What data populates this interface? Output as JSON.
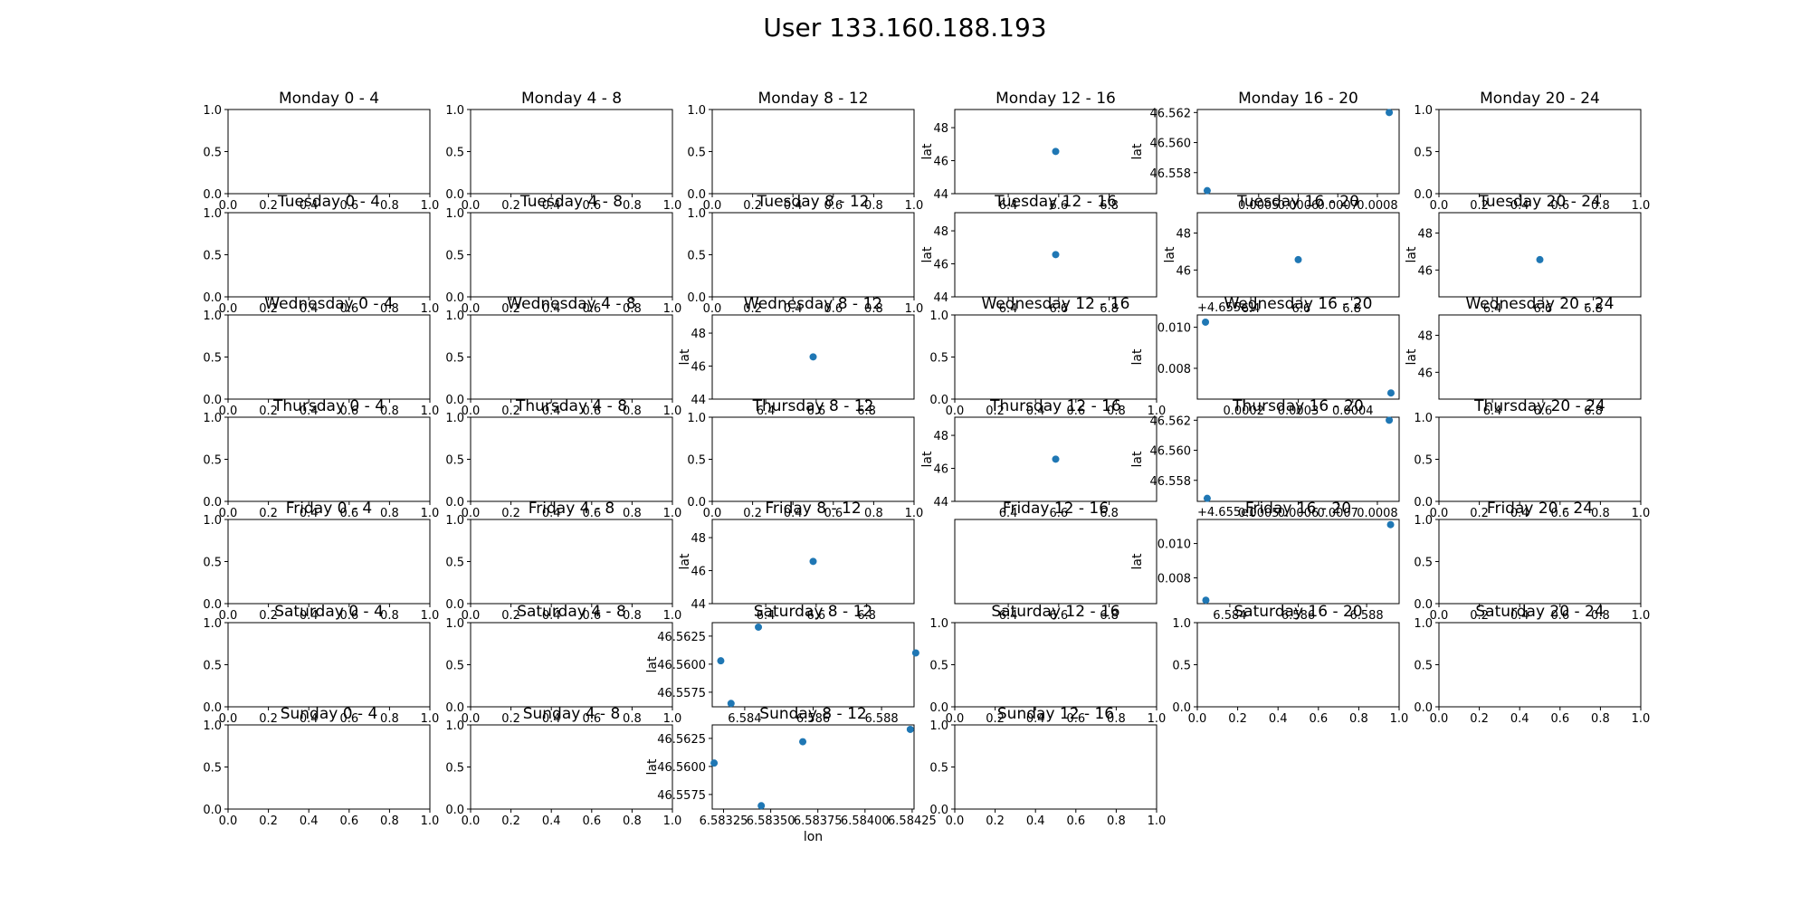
{
  "figure": {
    "title": "User 133.160.188.193"
  },
  "chart_data": [
    {
      "type": "scatter",
      "title": "Monday 0 - 4",
      "xlim": [
        0,
        1
      ],
      "ylim": [
        0,
        1
      ],
      "xticks": [
        "0.0",
        "0.2",
        "0.4",
        "0.6",
        "0.8",
        "1.0"
      ],
      "yticks": [
        "0.0",
        "0.5",
        "1.0"
      ],
      "x": [],
      "y": []
    },
    {
      "type": "scatter",
      "title": "Monday 4 - 8",
      "xlim": [
        0,
        1
      ],
      "ylim": [
        0,
        1
      ],
      "xticks": [
        "0.0",
        "0.2",
        "0.4",
        "0.6",
        "0.8",
        "1.0"
      ],
      "yticks": [
        "0.0",
        "0.5",
        "1.0"
      ],
      "x": [],
      "y": []
    },
    {
      "type": "scatter",
      "title": "Monday 8 - 12",
      "xlim": [
        0,
        1
      ],
      "ylim": [
        0,
        1
      ],
      "xticks": [
        "0.0",
        "0.2",
        "0.4",
        "0.6",
        "0.8",
        "1.0"
      ],
      "yticks": [
        "0.0",
        "0.5",
        "1.0"
      ],
      "x": [],
      "y": []
    },
    {
      "type": "scatter",
      "title": "Monday 12 - 16",
      "ylabel": "lat",
      "xlim": [
        6.188,
        6.988
      ],
      "ylim": [
        44,
        49.1
      ],
      "xticks": [
        "6.4",
        "6.6",
        "6.8"
      ],
      "yticks": [
        "44",
        "46",
        "48"
      ],
      "x": [
        6.588
      ],
      "y": [
        46.56
      ]
    },
    {
      "type": "scatter",
      "title": "Monday 16 - 20",
      "ylabel": "lat",
      "xlim": [
        0.000345,
        0.000855
      ],
      "ylim": [
        46.5566,
        46.5622
      ],
      "xticks": [
        "0.0005",
        "0.0006",
        "0.0007",
        "0.0008"
      ],
      "yticks": [
        "46.558",
        "46.560",
        "46.562"
      ],
      "x": [
        0.00037,
        0.00083
      ],
      "y": [
        46.5568,
        46.562
      ]
    },
    {
      "type": "scatter",
      "title": "Monday 20 - 24",
      "xlim": [
        0,
        1
      ],
      "ylim": [
        0,
        1
      ],
      "xticks": [
        "0.0",
        "0.2",
        "0.4",
        "0.6",
        "0.8",
        "1.0"
      ],
      "yticks": [
        "0.0",
        "0.5",
        "1.0"
      ],
      "x": [],
      "y": []
    },
    {
      "type": "scatter",
      "title": "Tuesday 0 - 4",
      "xlim": [
        0,
        1
      ],
      "ylim": [
        0,
        1
      ],
      "xticks": [
        "0.0",
        "0.2",
        "0.4",
        "0.6",
        "0.8",
        "1.0"
      ],
      "yticks": [
        "0.0",
        "0.5",
        "1.0"
      ],
      "x": [],
      "y": []
    },
    {
      "type": "scatter",
      "title": "Tuesday 4 - 8",
      "xlim": [
        0,
        1
      ],
      "ylim": [
        0,
        1
      ],
      "xticks": [
        "0.0",
        "0.2",
        "0.4",
        "0.6",
        "0.8",
        "1.0"
      ],
      "yticks": [
        "0.0",
        "0.5",
        "1.0"
      ],
      "x": [],
      "y": []
    },
    {
      "type": "scatter",
      "title": "Tuesday 8 - 12",
      "xlim": [
        0,
        1
      ],
      "ylim": [
        0,
        1
      ],
      "xticks": [
        "0.0",
        "0.2",
        "0.4",
        "0.6",
        "0.8",
        "1.0"
      ],
      "yticks": [
        "0.0",
        "0.5",
        "1.0"
      ],
      "x": [],
      "y": []
    },
    {
      "type": "scatter",
      "title": "Tuesday 12 - 16",
      "ylabel": "lat",
      "xlim": [
        6.188,
        6.988
      ],
      "ylim": [
        44,
        49.1
      ],
      "xticks": [
        "6.4",
        "6.6",
        "6.8"
      ],
      "yticks": [
        "44",
        "46",
        "48"
      ],
      "x": [
        6.588
      ],
      "y": [
        46.56
      ]
    },
    {
      "type": "scatter",
      "title": "Tuesday 16 - 20",
      "ylabel": "lat",
      "xlim": [
        6.188,
        6.988
      ],
      "ylim": [
        44.55,
        49.1
      ],
      "xticks": [
        "6.4",
        "6.6",
        "6.8"
      ],
      "yticks": [
        "46",
        "48"
      ],
      "x": [
        6.588
      ],
      "y": [
        46.56
      ]
    },
    {
      "type": "scatter",
      "title": "Tuesday 20 - 24",
      "ylabel": "lat",
      "xlim": [
        6.188,
        6.988
      ],
      "ylim": [
        44.55,
        49.1
      ],
      "xticks": [
        "6.4",
        "6.6",
        "6.8"
      ],
      "yticks": [
        "46",
        "48"
      ],
      "x": [
        6.588
      ],
      "y": [
        46.56
      ]
    },
    {
      "type": "scatter",
      "title": "Wednesday 0 - 4",
      "xlim": [
        0,
        1
      ],
      "ylim": [
        0,
        1
      ],
      "xticks": [
        "0.0",
        "0.2",
        "0.4",
        "0.6",
        "0.8",
        "1.0"
      ],
      "yticks": [
        "0.0",
        "0.5",
        "1.0"
      ],
      "x": [],
      "y": []
    },
    {
      "type": "scatter",
      "title": "Wednesday 4 - 8",
      "xlim": [
        0,
        1
      ],
      "ylim": [
        0,
        1
      ],
      "xticks": [
        "0.0",
        "0.2",
        "0.4",
        "0.6",
        "0.8",
        "1.0"
      ],
      "yticks": [
        "0.0",
        "0.5",
        "1.0"
      ],
      "x": [],
      "y": []
    },
    {
      "type": "scatter",
      "title": "Wednesday 8 - 12",
      "ylabel": "lat",
      "xlim": [
        6.188,
        6.988
      ],
      "ylim": [
        44,
        49.1
      ],
      "xticks": [
        "6.4",
        "6.6",
        "6.8"
      ],
      "yticks": [
        "44",
        "46",
        "48"
      ],
      "x": [
        6.588
      ],
      "y": [
        46.56
      ]
    },
    {
      "type": "scatter",
      "title": "Wednesday 12 - 16",
      "xlim": [
        0,
        1
      ],
      "ylim": [
        0,
        1
      ],
      "xticks": [
        "0.0",
        "0.2",
        "0.4",
        "0.6",
        "0.8",
        "1.0"
      ],
      "yticks": [
        "0.0",
        "0.5",
        "1.0"
      ],
      "x": [],
      "y": []
    },
    {
      "type": "scatter",
      "title": "Wednesday 16 - 20",
      "ylabel": "lat",
      "y_offset": "+4.655e1",
      "xlim": [
        0.000115,
        0.000485
      ],
      "ylim": [
        46.5565,
        46.5606
      ],
      "xticks": [
        "0.0002",
        "0.0003",
        "0.0004"
      ],
      "yticks": [
        "0.008",
        "0.010"
      ],
      "ytick_values": [
        46.558,
        46.56
      ],
      "x": [
        0.00013,
        0.00047
      ],
      "y": [
        46.56025,
        46.5568
      ]
    },
    {
      "type": "scatter",
      "title": "Wednesday 20 - 24",
      "ylabel": "lat",
      "xlim": [
        6.188,
        6.988
      ],
      "ylim": [
        44.55,
        49.1
      ],
      "xticks": [
        "6.4",
        "6.6",
        "6.8"
      ],
      "yticks": [
        "46",
        "48"
      ],
      "x": [],
      "y": []
    },
    {
      "type": "scatter",
      "title": "Thursday 0 - 4",
      "xlim": [
        0,
        1
      ],
      "ylim": [
        0,
        1
      ],
      "xticks": [
        "0.0",
        "0.2",
        "0.4",
        "0.6",
        "0.8",
        "1.0"
      ],
      "yticks": [
        "0.0",
        "0.5",
        "1.0"
      ],
      "x": [],
      "y": []
    },
    {
      "type": "scatter",
      "title": "Thursday 4 - 8",
      "xlim": [
        0,
        1
      ],
      "ylim": [
        0,
        1
      ],
      "xticks": [
        "0.0",
        "0.2",
        "0.4",
        "0.6",
        "0.8",
        "1.0"
      ],
      "yticks": [
        "0.0",
        "0.5",
        "1.0"
      ],
      "x": [],
      "y": []
    },
    {
      "type": "scatter",
      "title": "Thursday 8 - 12",
      "xlim": [
        0,
        1
      ],
      "ylim": [
        0,
        1
      ],
      "xticks": [
        "0.0",
        "0.2",
        "0.4",
        "0.6",
        "0.8",
        "1.0"
      ],
      "yticks": [
        "0.0",
        "0.5",
        "1.0"
      ],
      "x": [],
      "y": []
    },
    {
      "type": "scatter",
      "title": "Thursday 12 - 16",
      "ylabel": "lat",
      "xlim": [
        6.188,
        6.988
      ],
      "ylim": [
        44,
        49.1
      ],
      "xticks": [
        "6.4",
        "6.6",
        "6.8"
      ],
      "yticks": [
        "44",
        "46",
        "48"
      ],
      "x": [
        6.588
      ],
      "y": [
        46.56
      ]
    },
    {
      "type": "scatter",
      "title": "Thursday 16 - 20",
      "ylabel": "lat",
      "xlim": [
        0.000345,
        0.000855
      ],
      "ylim": [
        46.5566,
        46.5622
      ],
      "xticks": [
        "0.0005",
        "0.0006",
        "0.0007",
        "0.0008"
      ],
      "yticks": [
        "46.558",
        "46.560",
        "46.562"
      ],
      "x": [
        0.00037,
        0.00083
      ],
      "y": [
        46.5568,
        46.562
      ]
    },
    {
      "type": "scatter",
      "title": "Thursday 20 - 24",
      "xlim": [
        0,
        1
      ],
      "ylim": [
        0,
        1
      ],
      "xticks": [
        "0.0",
        "0.2",
        "0.4",
        "0.6",
        "0.8",
        "1.0"
      ],
      "yticks": [
        "0.0",
        "0.5",
        "1.0"
      ],
      "x": [],
      "y": []
    },
    {
      "type": "scatter",
      "title": "Friday 0 - 4",
      "xlim": [
        0,
        1
      ],
      "ylim": [
        0,
        1
      ],
      "xticks": [
        "0.0",
        "0.2",
        "0.4",
        "0.6",
        "0.8",
        "1.0"
      ],
      "yticks": [
        "0.0",
        "0.5",
        "1.0"
      ],
      "x": [],
      "y": []
    },
    {
      "type": "scatter",
      "title": "Friday 4 - 8",
      "xlim": [
        0,
        1
      ],
      "ylim": [
        0,
        1
      ],
      "xticks": [
        "0.0",
        "0.2",
        "0.4",
        "0.6",
        "0.8",
        "1.0"
      ],
      "yticks": [
        "0.0",
        "0.5",
        "1.0"
      ],
      "x": [],
      "y": []
    },
    {
      "type": "scatter",
      "title": "Friday 8 - 12",
      "ylabel": "lat",
      "xlim": [
        6.188,
        6.988
      ],
      "ylim": [
        44,
        49.1
      ],
      "xticks": [
        "6.4",
        "6.6",
        "6.8"
      ],
      "yticks": [
        "44",
        "46",
        "48"
      ],
      "x": [
        6.588
      ],
      "y": [
        46.56
      ]
    },
    {
      "type": "scatter",
      "title": "Friday 12 - 16",
      "xlim": [
        6.188,
        6.988
      ],
      "ylim": [
        0,
        1
      ],
      "xticks": [
        "6.4",
        "6.6",
        "6.8"
      ],
      "yticks": [],
      "x": [],
      "y": []
    },
    {
      "type": "scatter",
      "title": "Friday 16 - 20",
      "ylabel": "lat",
      "y_offset": "+4.655e1",
      "xlim": [
        6.58305,
        6.58895
      ],
      "ylim": [
        46.5565,
        46.5614
      ],
      "xticks": [
        "6.584",
        "6.586",
        "6.588"
      ],
      "xtick_values": [
        6.584,
        6.586,
        6.588
      ],
      "yticks": [
        "0.008",
        "0.010"
      ],
      "ytick_values": [
        46.558,
        46.56
      ],
      "x": [
        6.5833,
        6.5887
      ],
      "y": [
        46.5567,
        46.5611
      ]
    },
    {
      "type": "scatter",
      "title": "Friday 20 - 24",
      "xlim": [
        0,
        1
      ],
      "ylim": [
        0,
        1
      ],
      "xticks": [
        "0.0",
        "0.2",
        "0.4",
        "0.6",
        "0.8",
        "1.0"
      ],
      "yticks": [
        "0.0",
        "0.5",
        "1.0"
      ],
      "x": [],
      "y": []
    },
    {
      "type": "scatter",
      "title": "Saturday 0 - 4",
      "xlim": [
        0,
        1
      ],
      "ylim": [
        0,
        1
      ],
      "xticks": [
        "0.0",
        "0.2",
        "0.4",
        "0.6",
        "0.8",
        "1.0"
      ],
      "yticks": [
        "0.0",
        "0.5",
        "1.0"
      ],
      "x": [],
      "y": []
    },
    {
      "type": "scatter",
      "title": "Saturday 4 - 8",
      "xlim": [
        0,
        1
      ],
      "ylim": [
        0,
        1
      ],
      "xticks": [
        "0.0",
        "0.2",
        "0.4",
        "0.6",
        "0.8",
        "1.0"
      ],
      "yticks": [
        "0.0",
        "0.5",
        "1.0"
      ],
      "x": [],
      "y": []
    },
    {
      "type": "scatter",
      "title": "Saturday 8 - 12",
      "ylabel": "lat",
      "xlim": [
        6.58305,
        6.58895
      ],
      "ylim": [
        46.5562,
        46.5637
      ],
      "xticks": [
        "6.584",
        "6.586",
        "6.588"
      ],
      "xtick_values": [
        6.584,
        6.586,
        6.588
      ],
      "yticks": [
        "46.5575",
        "46.5600",
        "46.5625"
      ],
      "ytick_values": [
        46.5575,
        46.56,
        46.5625
      ],
      "x": [
        6.5833,
        6.5836,
        6.5844,
        6.589
      ],
      "y": [
        46.5603,
        46.5565,
        46.5633,
        46.561
      ]
    },
    {
      "type": "scatter",
      "title": "Saturday 12 - 16",
      "xlim": [
        0,
        1
      ],
      "ylim": [
        0,
        1
      ],
      "xticks": [
        "0.0",
        "0.2",
        "0.4",
        "0.6",
        "0.8",
        "1.0"
      ],
      "yticks": [
        "0.0",
        "0.5",
        "1.0"
      ],
      "x": [],
      "y": []
    },
    {
      "type": "scatter",
      "title": "Saturday 16 - 20",
      "xlim": [
        0,
        1
      ],
      "ylim": [
        0,
        1
      ],
      "xticks": [
        "0.0",
        "0.2",
        "0.4",
        "0.6",
        "0.8",
        "1.0"
      ],
      "yticks": [
        "0.0",
        "0.5",
        "1.0"
      ],
      "x": [],
      "y": []
    },
    {
      "type": "scatter",
      "title": "Saturday 20 - 24",
      "xlim": [
        0,
        1
      ],
      "ylim": [
        0,
        1
      ],
      "xticks": [
        "0.0",
        "0.2",
        "0.4",
        "0.6",
        "0.8",
        "1.0"
      ],
      "yticks": [
        "0.0",
        "0.5",
        "1.0"
      ],
      "x": [],
      "y": []
    },
    {
      "type": "scatter",
      "title": "Sunday 0 - 4",
      "xlim": [
        0,
        1
      ],
      "ylim": [
        0,
        1
      ],
      "xticks": [
        "0.0",
        "0.2",
        "0.4",
        "0.6",
        "0.8",
        "1.0"
      ],
      "yticks": [
        "0.0",
        "0.5",
        "1.0"
      ],
      "x": [],
      "y": []
    },
    {
      "type": "scatter",
      "title": "Sunday 4 - 8",
      "xlim": [
        0,
        1
      ],
      "ylim": [
        0,
        1
      ],
      "xticks": [
        "0.0",
        "0.2",
        "0.4",
        "0.6",
        "0.8",
        "1.0"
      ],
      "yticks": [
        "0.0",
        "0.5",
        "1.0"
      ],
      "x": [],
      "y": []
    },
    {
      "type": "scatter",
      "title": "Sunday 8 - 12",
      "xlabel": "lon",
      "ylabel": "lat",
      "xlim": [
        6.58319,
        6.58426
      ],
      "ylim": [
        46.5562,
        46.5637
      ],
      "xticks": [
        "6.58325",
        "6.58350",
        "6.58375",
        "6.58400",
        "6.58425"
      ],
      "xtick_values": [
        6.58325,
        6.5835,
        6.58375,
        6.584,
        6.58425
      ],
      "yticks": [
        "46.5575",
        "46.5600",
        "46.5625"
      ],
      "ytick_values": [
        46.5575,
        46.56,
        46.5625
      ],
      "x": [
        6.5832,
        6.58345,
        6.58367,
        6.58424
      ],
      "y": [
        46.5603,
        46.5565,
        46.5622,
        46.5633
      ]
    },
    {
      "type": "scatter",
      "title": "Sunday 12 - 16",
      "xlim": [
        0,
        1
      ],
      "ylim": [
        0,
        1
      ],
      "xticks": [
        "0.0",
        "0.2",
        "0.4",
        "0.6",
        "0.8",
        "1.0"
      ],
      "yticks": [
        "0.0",
        "0.5",
        "1.0"
      ],
      "x": [],
      "y": []
    }
  ]
}
